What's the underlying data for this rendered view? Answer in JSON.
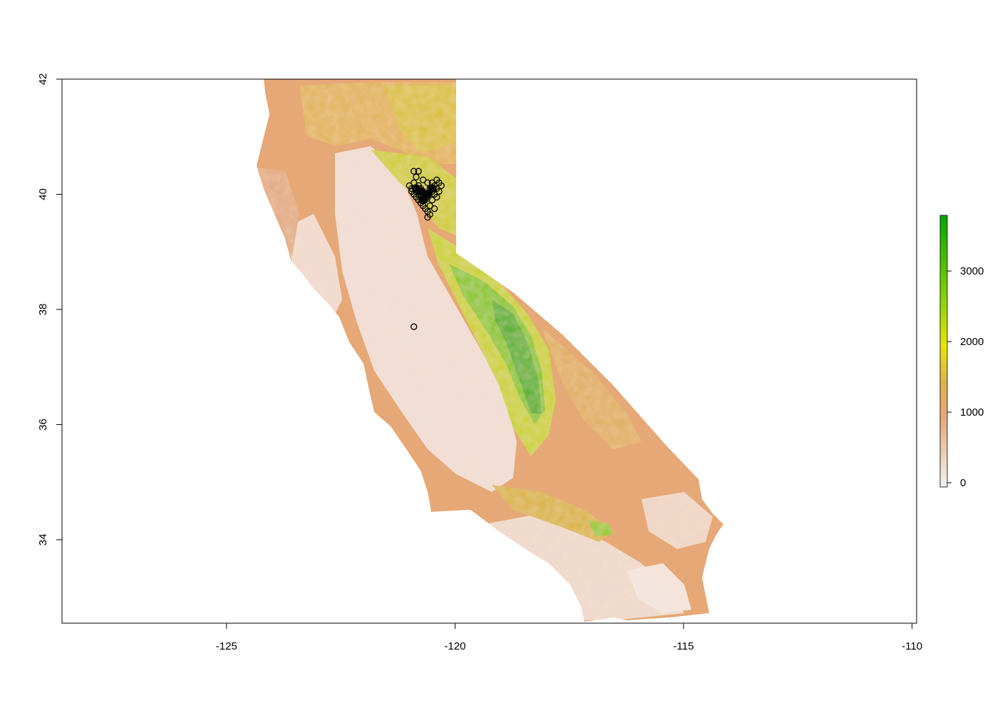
{
  "chart_data": {
    "type": "raster-map",
    "title": "",
    "xlabel": "",
    "ylabel": "",
    "xlim": [
      -128.6,
      -109.9
    ],
    "ylim": [
      32.55,
      42.0
    ],
    "x_ticks": [
      -125,
      -120,
      -115,
      -110
    ],
    "y_ticks": [
      34,
      36,
      38,
      40,
      42
    ],
    "raster": {
      "value_range": [
        0,
        3850
      ],
      "color_stops": [
        {
          "value": 0,
          "color": "#f2f2f2"
        },
        {
          "value": 1000,
          "color": "#e6a876"
        },
        {
          "value": 1500,
          "color": "#e0b44a"
        },
        {
          "value": 2000,
          "color": "#e6e600"
        },
        {
          "value": 2600,
          "color": "#8fd400"
        },
        {
          "value": 3850,
          "color": "#00a600"
        }
      ]
    },
    "legend": {
      "placement": "right",
      "ticks": [
        0,
        1000,
        2000,
        3000
      ]
    },
    "points": {
      "symbol": "open-circle",
      "color": "#000000",
      "coordinates": [
        [
          -120.9,
          37.7
        ],
        [
          -120.8,
          40.4
        ],
        [
          -120.9,
          40.4
        ],
        [
          -121.0,
          40.15
        ],
        [
          -120.95,
          40.1
        ],
        [
          -120.85,
          40.05
        ],
        [
          -120.8,
          40.0
        ],
        [
          -120.75,
          40.1
        ],
        [
          -120.7,
          40.05
        ],
        [
          -120.65,
          40.0
        ],
        [
          -120.6,
          39.95
        ],
        [
          -120.8,
          39.9
        ],
        [
          -120.75,
          39.85
        ],
        [
          -120.7,
          39.8
        ],
        [
          -120.65,
          39.75
        ],
        [
          -120.6,
          39.7
        ],
        [
          -120.55,
          39.65
        ],
        [
          -120.5,
          39.9
        ],
        [
          -120.45,
          40.0
        ],
        [
          -120.4,
          40.25
        ],
        [
          -120.35,
          40.2
        ],
        [
          -120.45,
          40.15
        ],
        [
          -120.5,
          40.05
        ],
        [
          -120.55,
          40.1
        ],
        [
          -120.6,
          40.2
        ],
        [
          -120.7,
          40.25
        ],
        [
          -120.85,
          40.3
        ],
        [
          -120.9,
          40.2
        ],
        [
          -120.35,
          40.05
        ],
        [
          -120.4,
          39.95
        ],
        [
          -120.55,
          39.8
        ],
        [
          -120.65,
          39.9
        ],
        [
          -120.75,
          39.95
        ],
        [
          -120.85,
          39.95
        ],
        [
          -120.9,
          40.0
        ],
        [
          -120.6,
          39.6
        ],
        [
          -120.45,
          39.75
        ],
        [
          -120.3,
          40.15
        ],
        [
          -120.4,
          40.1
        ],
        [
          -120.5,
          40.2
        ],
        [
          -120.8,
          40.15
        ],
        [
          -120.7,
          39.95
        ],
        [
          -120.95,
          40.05
        ]
      ]
    }
  }
}
